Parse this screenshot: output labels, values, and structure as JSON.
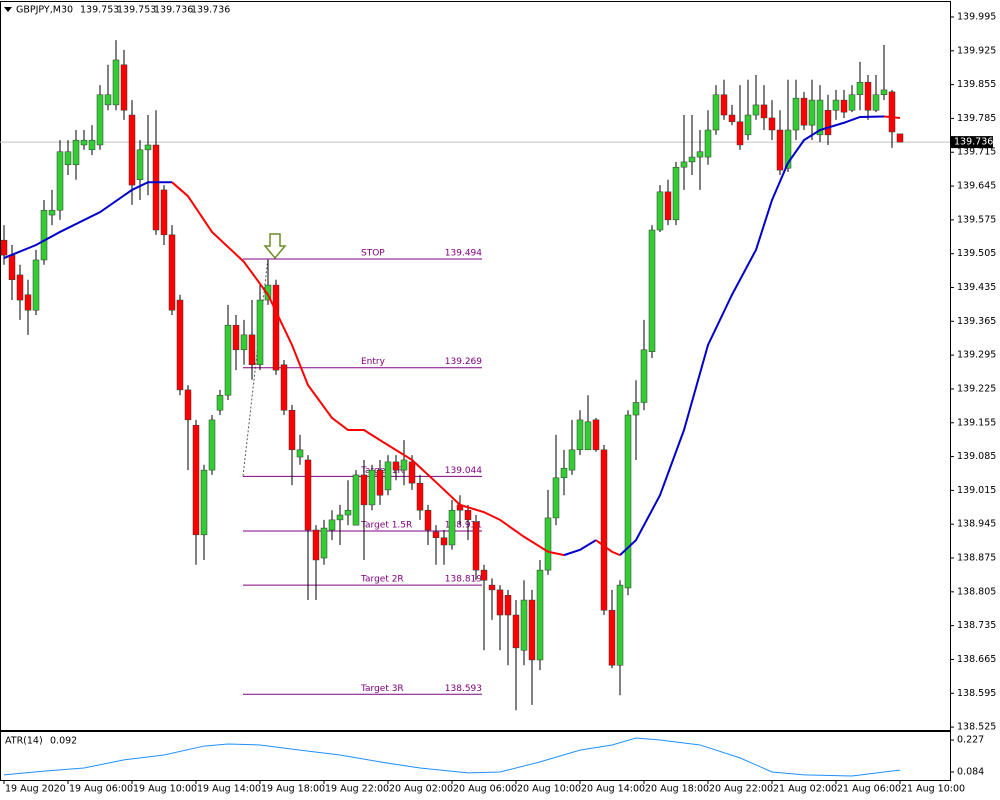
{
  "chart_data": [
    {
      "type": "candlestick",
      "title": "GBPJPY,M30",
      "open": [
        139.533,
        139.502,
        139.461,
        139.42,
        139.388,
        139.492,
        139.585,
        139.595,
        139.689,
        139.689,
        139.73,
        139.72,
        139.73,
        139.813,
        139.813,
        139.896,
        139.792,
        139.658,
        139.72,
        139.73,
        139.637,
        139.544,
        139.409,
        139.223,
        139.15,
        138.923,
        139.057,
        139.181,
        139.212,
        139.357,
        139.306,
        139.337,
        139.275,
        139.409,
        139.44,
        139.275,
        139.181,
        139.084,
        139.078,
        138.933,
        138.875,
        138.933,
        138.954,
        138.964,
        138.943,
        139.047,
        138.985,
        139.057,
        139.016,
        139.074,
        139.057,
        139.074,
        139.03,
        138.974,
        138.929,
        138.917,
        138.902,
        138.985,
        138.974,
        138.95,
        138.85,
        138.819,
        138.809,
        138.798,
        138.757,
        138.684,
        138.788,
        138.664,
        138.85,
        138.958,
        139.041,
        139.057,
        139.099,
        139.099,
        139.161,
        139.099,
        138.767,
        138.653,
        138.813,
        139.171,
        139.197,
        139.302,
        139.554,
        139.633,
        139.575,
        139.684,
        139.695,
        139.705,
        139.705,
        139.761,
        139.834,
        139.792,
        139.778,
        139.751,
        139.792,
        139.813,
        139.786,
        139.761,
        139.682,
        139.761,
        139.827,
        139.771,
        139.751,
        139.802,
        139.802,
        139.823,
        139.802,
        139.834,
        139.86,
        139.802,
        139.834,
        139.84,
        139.753
      ],
      "high": [
        139.564,
        139.523,
        139.482,
        139.451,
        139.513,
        139.616,
        139.637,
        139.74,
        139.74,
        139.761,
        139.761,
        139.771,
        139.854,
        139.896,
        139.947,
        139.927,
        139.823,
        139.74,
        139.792,
        139.802,
        139.647,
        139.564,
        139.42,
        139.233,
        139.161,
        139.068,
        139.171,
        139.223,
        139.399,
        139.378,
        139.368,
        139.409,
        139.44,
        139.492,
        139.451,
        139.285,
        139.192,
        139.13,
        139.088,
        138.943,
        138.954,
        138.974,
        138.985,
        139.036,
        139.057,
        139.078,
        139.068,
        139.078,
        139.088,
        139.088,
        139.119,
        139.088,
        139.047,
        138.985,
        138.943,
        138.933,
        138.995,
        139.005,
        138.985,
        138.964,
        138.861,
        138.833,
        138.819,
        138.809,
        138.788,
        138.829,
        138.809,
        138.871,
        139.016,
        139.13,
        139.099,
        139.161,
        139.181,
        139.212,
        139.165,
        139.109,
        138.809,
        138.829,
        139.181,
        139.243,
        139.368,
        139.564,
        139.647,
        139.658,
        139.695,
        139.792,
        139.792,
        139.761,
        139.802,
        139.854,
        139.865,
        139.813,
        139.854,
        139.865,
        139.875,
        139.854,
        139.823,
        139.802,
        139.865,
        139.865,
        139.84,
        139.865,
        139.854,
        139.834,
        139.844,
        139.844,
        139.854,
        139.902,
        139.875,
        139.875,
        139.937,
        139.844,
        139.753
      ],
      "low": [
        139.482,
        139.409,
        139.368,
        139.337,
        139.378,
        139.482,
        139.564,
        139.575,
        139.668,
        139.658,
        139.72,
        139.709,
        139.72,
        139.802,
        139.802,
        139.782,
        139.606,
        139.616,
        139.626,
        139.544,
        139.523,
        139.378,
        139.212,
        139.057,
        138.861,
        138.871,
        139.047,
        139.171,
        139.202,
        139.264,
        139.275,
        139.244,
        139.264,
        139.399,
        139.254,
        139.171,
        139.026,
        139.068,
        138.788,
        138.788,
        138.861,
        138.912,
        138.902,
        138.943,
        138.943,
        138.871,
        138.974,
        138.985,
        139.005,
        139.036,
        139.026,
        139.016,
        138.954,
        138.902,
        138.861,
        138.861,
        138.892,
        138.943,
        138.912,
        138.829,
        138.684,
        138.747,
        138.684,
        138.653,
        138.56,
        138.653,
        138.571,
        138.643,
        138.84,
        138.943,
        139.005,
        139.047,
        139.088,
        139.099,
        139.095,
        138.757,
        138.647,
        138.591,
        138.798,
        139.078,
        139.181,
        139.289,
        139.55,
        139.564,
        139.564,
        139.637,
        139.668,
        139.637,
        139.689,
        139.751,
        139.782,
        139.771,
        139.72,
        139.74,
        139.782,
        139.761,
        139.74,
        139.668,
        139.674,
        139.74,
        139.761,
        139.74,
        139.736,
        139.73,
        139.782,
        139.786,
        139.798,
        139.802,
        139.782,
        139.798,
        139.823,
        139.724,
        139.736
      ],
      "close": [
        139.502,
        139.451,
        139.409,
        139.388,
        139.492,
        139.595,
        139.595,
        139.716,
        139.716,
        139.74,
        139.74,
        139.74,
        139.834,
        139.834,
        139.906,
        139.802,
        139.647,
        139.72,
        139.73,
        139.554,
        139.544,
        139.388,
        139.223,
        139.161,
        138.923,
        139.057,
        139.161,
        139.212,
        139.357,
        139.306,
        139.337,
        139.275,
        139.409,
        139.44,
        139.264,
        139.181,
        139.099,
        139.099,
        138.933,
        138.871,
        138.937,
        138.954,
        138.964,
        138.974,
        139.047,
        138.985,
        139.057,
        139.005,
        139.074,
        139.057,
        139.078,
        139.03,
        138.974,
        138.933,
        138.917,
        138.902,
        138.974,
        138.974,
        138.954,
        138.85,
        138.829,
        138.809,
        138.757,
        138.757,
        138.689,
        138.788,
        138.664,
        138.85,
        138.958,
        139.041,
        139.061,
        139.099,
        139.161,
        139.157,
        139.099,
        138.767,
        138.653,
        138.819,
        139.171,
        139.197,
        139.306,
        139.554,
        139.633,
        139.575,
        139.684,
        139.695,
        139.705,
        139.716,
        139.761,
        139.834,
        139.792,
        139.778,
        139.73,
        139.792,
        139.813,
        139.786,
        139.761,
        139.678,
        139.761,
        139.827,
        139.771,
        139.823,
        139.823,
        139.751,
        139.823,
        139.798,
        139.834,
        139.86,
        139.802,
        139.834,
        139.844,
        139.757,
        139.736
      ],
      "up_color": "#32cd32",
      "down_color": "#ff0000",
      "xlim": [
        -0.5,
        118.25
      ],
      "xticks": [
        {
          "value": 0,
          "label": "19 Aug 2020"
        },
        {
          "value": 8,
          "label": "19 Aug 06:00"
        },
        {
          "value": 16,
          "label": "19 Aug 10:00"
        },
        {
          "value": 24,
          "label": "19 Aug 14:00"
        },
        {
          "value": 32,
          "label": "19 Aug 18:00"
        },
        {
          "value": 40,
          "label": "19 Aug 22:00"
        },
        {
          "value": 48,
          "label": "20 Aug 02:00"
        },
        {
          "value": 56,
          "label": "20 Aug 06:00"
        },
        {
          "value": 64,
          "label": "20 Aug 10:00"
        },
        {
          "value": 72,
          "label": "20 Aug 14:00"
        },
        {
          "value": 80,
          "label": "20 Aug 18:00"
        },
        {
          "value": 88,
          "label": "20 Aug 22:00"
        },
        {
          "value": 96,
          "label": "21 Aug 02:00"
        },
        {
          "value": 104,
          "label": "21 Aug 06:00"
        },
        {
          "value": 112,
          "label": "21 Aug 10:00"
        }
      ],
      "ylim": [
        138.519,
        140.026
      ],
      "yticks": [
        139.995,
        139.925,
        139.855,
        139.785,
        139.715,
        139.645,
        139.575,
        139.505,
        139.435,
        139.365,
        139.295,
        139.225,
        139.155,
        139.085,
        139.015,
        138.945,
        138.875,
        138.805,
        138.735,
        138.665,
        138.595,
        138.525
      ],
      "moving_average": {
        "x": [
          0,
          4,
          7,
          12,
          16,
          18,
          21,
          23,
          26,
          30,
          33,
          36,
          38,
          41,
          43,
          45,
          47,
          51,
          54,
          57,
          60,
          62,
          65,
          68,
          70,
          72,
          74,
          76,
          77,
          79,
          82,
          85,
          88,
          91,
          94,
          96,
          98,
          100,
          102,
          105,
          107,
          110,
          112
        ],
        "values": [
          139.496,
          139.523,
          139.55,
          139.591,
          139.637,
          139.653,
          139.653,
          139.624,
          139.55,
          139.488,
          139.42,
          139.316,
          139.233,
          139.165,
          139.14,
          139.14,
          139.119,
          139.078,
          139.032,
          138.985,
          138.97,
          138.954,
          138.919,
          138.888,
          138.881,
          138.892,
          138.912,
          138.888,
          138.881,
          138.912,
          139.005,
          139.14,
          139.316,
          139.42,
          139.513,
          139.616,
          139.693,
          139.74,
          139.761,
          139.776,
          139.788,
          139.789,
          139.786
        ],
        "up_color": "#0000cd",
        "down_color": "#ff0000"
      },
      "current_price": 139.736,
      "levels": [
        {
          "label": "STOP",
          "value": 139.494
        },
        {
          "label": "Entry",
          "value": 139.269
        },
        {
          "label": "Target 1R",
          "value": 139.044
        },
        {
          "label": "Target 1.5R",
          "value": 138.931
        },
        {
          "label": "Target 2R",
          "value": 138.819
        },
        {
          "label": "Target 3R",
          "value": 138.593
        }
      ],
      "level_color": "#800080"
    },
    {
      "type": "line",
      "title": "ATR(14)",
      "current": 0.092,
      "x": [
        0,
        5,
        10,
        15,
        20,
        25,
        28,
        32,
        37,
        42,
        47,
        52,
        58,
        62,
        67,
        72,
        76,
        79,
        82,
        87,
        92,
        96,
        100,
        106,
        110,
        112
      ],
      "values": [
        0.071,
        0.088,
        0.102,
        0.138,
        0.16,
        0.2,
        0.209,
        0.205,
        0.182,
        0.16,
        0.129,
        0.102,
        0.08,
        0.084,
        0.129,
        0.182,
        0.205,
        0.236,
        0.227,
        0.205,
        0.147,
        0.084,
        0.071,
        0.066,
        0.084,
        0.092
      ],
      "color": "#1e90ff",
      "ylim": [
        0.048,
        0.263
      ],
      "yticks": [
        0.227,
        0.084
      ]
    }
  ]
}
